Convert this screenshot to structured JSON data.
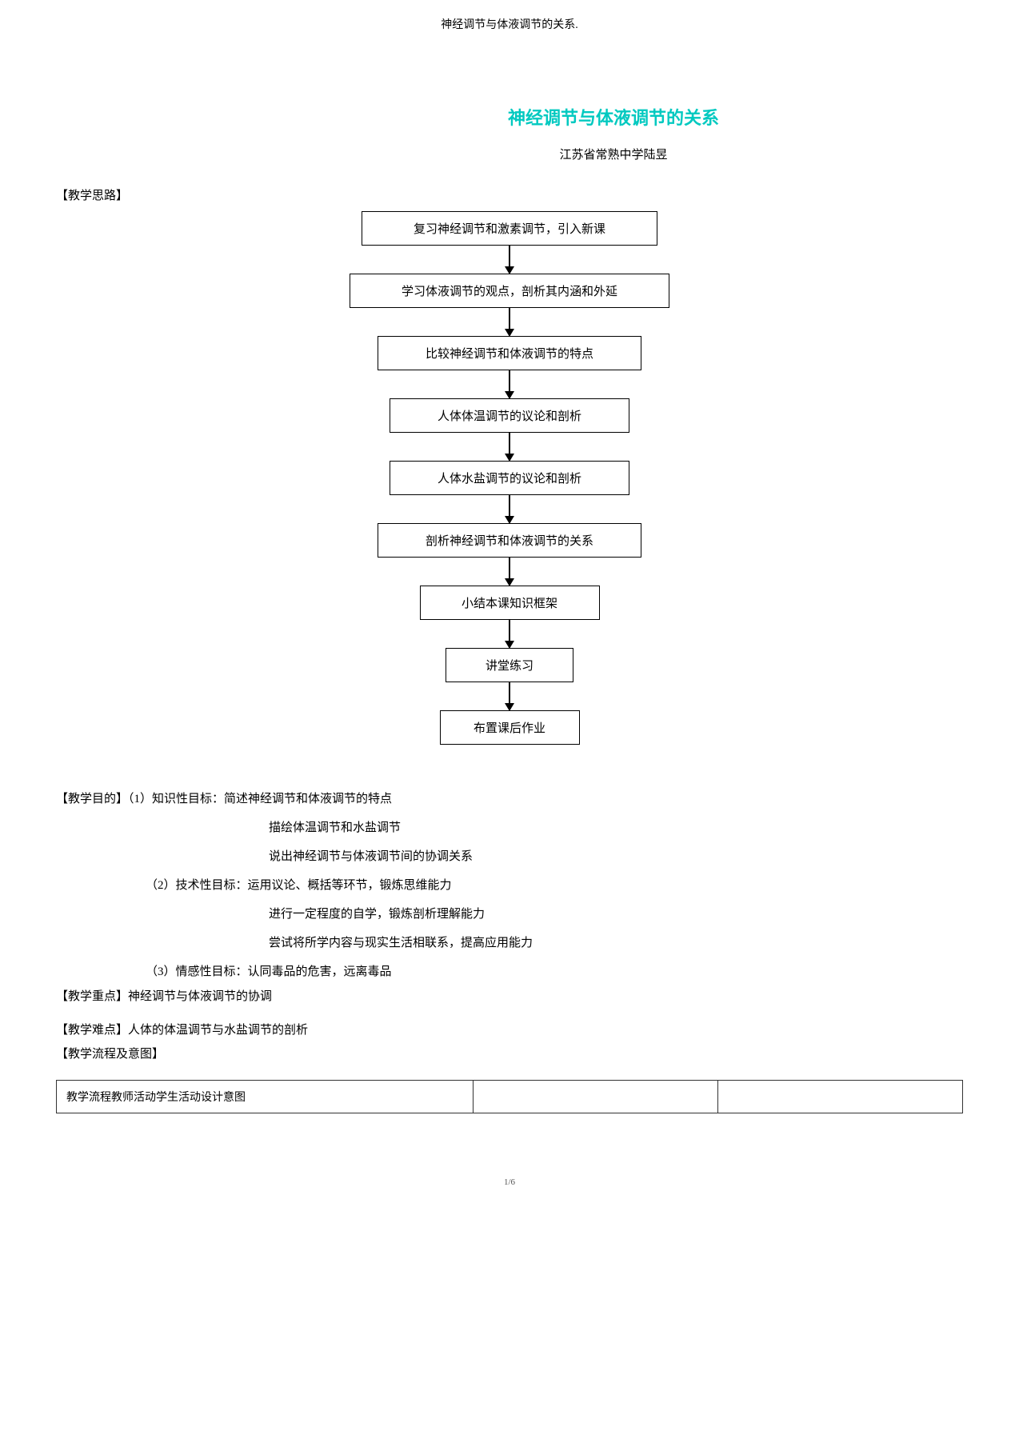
{
  "header_small": "神经调节与体液调节的关系.",
  "main_title": "神经调节与体液调节的关系",
  "main_title_color": "#00c9c0",
  "subtitle": "江苏省常熟中学陆昱",
  "section_thought": "【教学思路】",
  "flow_boxes": [
    "复习神经调节和激素调节，引入新课",
    "学习体液调节的观点，剖析其内涵和外延",
    "比较神经调节和体液调节的特点",
    "人体体温调节的议论和剖析",
    "人体水盐调节的议论和剖析",
    "剖析神经调节和体液调节的关系",
    "小结本课知识框架",
    "讲堂练习",
    "布置课后作业"
  ],
  "flow_box_widths": [
    370,
    400,
    330,
    300,
    300,
    330,
    225,
    160,
    175
  ],
  "goals_label": "【教学目的】",
  "goals": [
    {
      "indent": 1,
      "prefix": "【教学目的】",
      "text": "（1）知识性目标：简述神经调节和体液调节的特点"
    },
    {
      "indent": 2,
      "prefix": "",
      "text": "描绘体温调节和水盐调节"
    },
    {
      "indent": 2,
      "prefix": "",
      "text": "说出神经调节与体液调节间的协调关系"
    },
    {
      "indent": 1,
      "prefix": "",
      "text": "（2）技术性目标：运用议论、概括等环节，锻炼思维能力"
    },
    {
      "indent": 2,
      "prefix": "",
      "text": "进行一定程度的自学，锻炼剖析理解能力"
    },
    {
      "indent": 2,
      "prefix": "",
      "text": "尝试将所学内容与现实生活相联系，提高应用能力"
    },
    {
      "indent": 1,
      "prefix": "",
      "text": "（3）情感性目标：认同毒品的危害，远离毒品"
    }
  ],
  "key_point": "【教学重点】神经调节与体液调节的协调",
  "diff_point": "【教学难点】人体的体温调节与水盐调节的剖析",
  "flow_label": "【教学流程及意图】",
  "table_header": "教学流程教师活动学生活动设计意图",
  "page_num": "1/6"
}
